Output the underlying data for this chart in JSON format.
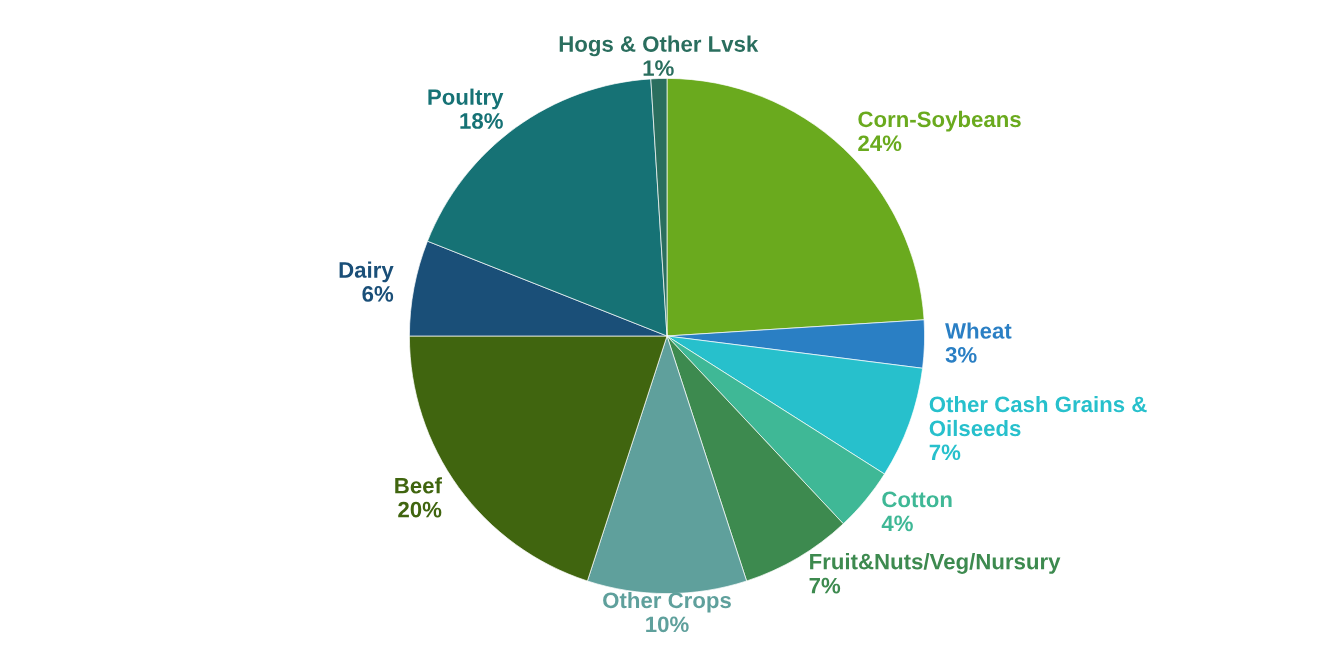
{
  "chart_data": {
    "type": "pie",
    "categories": [
      "Corn-Soybeans",
      "Wheat",
      "Other Cash Grains &\nOilseeds",
      "Cotton",
      "Fruit&Nuts/Veg/Nursury",
      "Other Crops",
      "Beef",
      "Dairy",
      "Poultry",
      "Hogs & Other Lvsk"
    ],
    "values": [
      24,
      3,
      7,
      4,
      7,
      10,
      20,
      6,
      18,
      1
    ],
    "value_labels": [
      "24%",
      "3%",
      "7%",
      "4%",
      "7%",
      "10%",
      "20%",
      "6%",
      "18%",
      "1%"
    ],
    "colors": [
      "#6aaa1e",
      "#2a7fc4",
      "#27c0cc",
      "#3fb896",
      "#3d8a4f",
      "#5fa09c",
      "#40650f",
      "#1a4f78",
      "#167275",
      "#2a6e5e"
    ],
    "legend": false
  }
}
